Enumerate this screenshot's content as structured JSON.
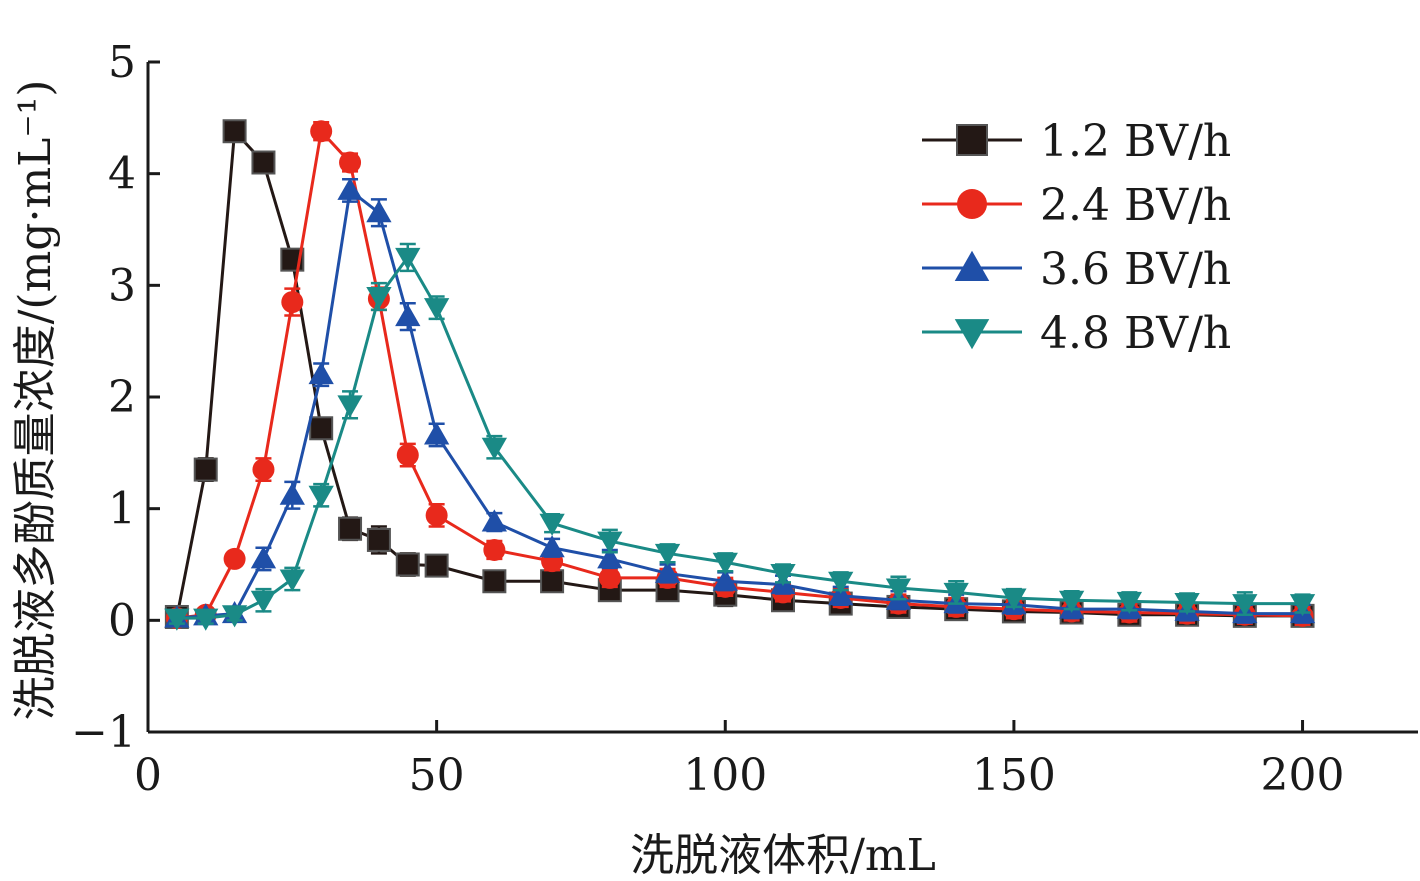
{
  "chart_data": {
    "type": "line",
    "xlabel": "洗脱液体积/mL",
    "ylabel": "洗脱液多酚质量浓度/(mg·mL⁻¹)",
    "xlim": [
      0,
      220
    ],
    "ylim": [
      -1,
      5
    ],
    "xticks": [
      0,
      50,
      100,
      150,
      200
    ],
    "yticks": [
      -1,
      0,
      1,
      2,
      3,
      4,
      5
    ],
    "xtick_labels": [
      "0",
      "50",
      "100",
      "150",
      "200"
    ],
    "ytick_labels": [
      "−1",
      "0",
      "1",
      "2",
      "3",
      "4",
      "5"
    ],
    "grid": false,
    "legend_position": "top-right",
    "error_bars": true,
    "x": [
      5,
      10,
      15,
      20,
      25,
      30,
      35,
      40,
      45,
      50,
      60,
      70,
      80,
      90,
      100,
      110,
      120,
      130,
      140,
      150,
      160,
      170,
      180,
      190,
      200
    ],
    "series": [
      {
        "name": "1.2 BV/h",
        "color": "#231815",
        "marker": "square",
        "values": [
          0.03,
          1.35,
          4.38,
          4.1,
          3.23,
          1.72,
          0.82,
          0.72,
          0.5,
          0.49,
          0.35,
          0.35,
          0.27,
          0.27,
          0.23,
          0.18,
          0.15,
          0.12,
          0.1,
          0.08,
          0.07,
          0.05,
          0.05,
          0.04,
          0.04
        ],
        "errors": [
          0.08,
          0.1,
          0.05,
          0.05,
          0.08,
          0.08,
          0.1,
          0.12,
          0.1,
          0.05,
          0.05,
          0.05,
          0.05,
          0.08,
          0.1,
          0.05,
          0.05,
          0.05,
          0.05,
          0.05,
          0.05,
          0.05,
          0.05,
          0.05,
          0.05
        ]
      },
      {
        "name": "2.4 BV/h",
        "color": "#e8291c",
        "marker": "circle",
        "values": [
          0.02,
          0.05,
          0.55,
          1.35,
          2.85,
          4.38,
          4.1,
          2.88,
          1.48,
          0.94,
          0.63,
          0.53,
          0.38,
          0.38,
          0.3,
          0.25,
          0.2,
          0.15,
          0.12,
          0.1,
          0.08,
          0.07,
          0.06,
          0.05,
          0.04
        ],
        "errors": [
          0.05,
          0.05,
          0.05,
          0.1,
          0.12,
          0.08,
          0.08,
          0.1,
          0.1,
          0.1,
          0.08,
          0.08,
          0.08,
          0.08,
          0.08,
          0.08,
          0.08,
          0.08,
          0.08,
          0.08,
          0.08,
          0.08,
          0.08,
          0.08,
          0.08
        ]
      },
      {
        "name": "3.6 BV/h",
        "color": "#1f4fa8",
        "marker": "triangle-up",
        "values": [
          0.02,
          0.04,
          0.06,
          0.55,
          1.12,
          2.2,
          3.85,
          3.65,
          2.72,
          1.66,
          0.88,
          0.65,
          0.55,
          0.42,
          0.35,
          0.32,
          0.22,
          0.18,
          0.15,
          0.14,
          0.1,
          0.1,
          0.08,
          0.06,
          0.06
        ],
        "errors": [
          0.05,
          0.05,
          0.05,
          0.1,
          0.12,
          0.1,
          0.1,
          0.12,
          0.12,
          0.1,
          0.08,
          0.08,
          0.08,
          0.08,
          0.08,
          0.08,
          0.08,
          0.08,
          0.08,
          0.08,
          0.08,
          0.08,
          0.08,
          0.08,
          0.08
        ]
      },
      {
        "name": "4.8 BV/h",
        "color": "#1a8a86",
        "marker": "triangle-down",
        "values": [
          0.02,
          0.02,
          0.05,
          0.18,
          0.37,
          1.12,
          1.93,
          2.9,
          3.25,
          2.8,
          1.55,
          0.87,
          0.71,
          0.6,
          0.52,
          0.42,
          0.35,
          0.29,
          0.25,
          0.2,
          0.18,
          0.17,
          0.16,
          0.15,
          0.15
        ],
        "errors": [
          0.05,
          0.05,
          0.05,
          0.1,
          0.1,
          0.1,
          0.12,
          0.12,
          0.12,
          0.1,
          0.1,
          0.08,
          0.1,
          0.08,
          0.08,
          0.08,
          0.08,
          0.1,
          0.1,
          0.08,
          0.08,
          0.08,
          0.08,
          0.1,
          0.08
        ]
      }
    ]
  }
}
